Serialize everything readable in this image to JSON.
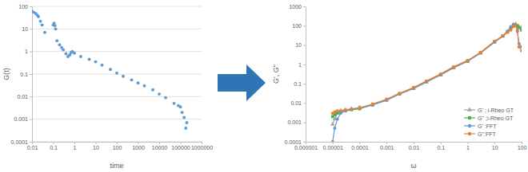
{
  "chart_data": [
    {
      "type": "scatter",
      "x_label": "time",
      "y_label": "G(t)",
      "log": true,
      "grid": true,
      "color": "#5b9bd5",
      "marker": "circle",
      "xlim": [
        0.01,
        1000000
      ],
      "ylim": [
        0.0001,
        100
      ],
      "xticks": [
        0.01,
        0.1,
        1,
        10,
        100,
        1000,
        10000,
        100000,
        1000000
      ],
      "yticks": [
        0.0001,
        0.001,
        0.01,
        0.1,
        1,
        10,
        100
      ],
      "x": [
        0.01,
        0.012,
        0.015,
        0.018,
        0.02,
        0.025,
        0.03,
        0.04,
        0.1,
        0.11,
        0.12,
        0.13,
        0.15,
        0.2,
        0.25,
        0.3,
        0.4,
        0.5,
        0.6,
        0.7,
        0.8,
        1,
        2,
        5,
        10,
        20,
        50,
        100,
        200,
        500,
        1000,
        2000,
        5000,
        10000,
        20000,
        50000,
        80000,
        100000,
        120000,
        150000,
        180000,
        200000
      ],
      "values": [
        60,
        55,
        48,
        40,
        35,
        22,
        15,
        7,
        15,
        18,
        14,
        10,
        3,
        2,
        1.5,
        1.2,
        0.8,
        0.6,
        0.7,
        0.9,
        1.0,
        0.85,
        0.6,
        0.45,
        0.35,
        0.25,
        0.16,
        0.11,
        0.08,
        0.055,
        0.04,
        0.03,
        0.02,
        0.013,
        0.009,
        0.005,
        0.004,
        0.0035,
        0.002,
        0.0012,
        0.0004,
        0.0007
      ]
    },
    {
      "type": "line",
      "x_label": "ω",
      "y_label": "G', G''",
      "log": true,
      "grid": false,
      "legend": "bottom-right",
      "xlim": [
        1e-06,
        100
      ],
      "ylim": [
        0.0001,
        1000
      ],
      "xticks": [
        1e-06,
        1e-05,
        0.0001,
        0.001,
        0.01,
        0.1,
        1,
        10,
        100
      ],
      "yticks": [
        0.0001,
        0.001,
        0.01,
        0.1,
        1,
        10,
        100,
        1000
      ],
      "x": [
        1e-05,
        1.2e-05,
        1.5e-05,
        2e-05,
        3e-05,
        5e-05,
        0.0001,
        0.0003,
        0.001,
        0.003,
        0.01,
        0.03,
        0.1,
        0.3,
        1,
        3,
        10,
        20,
        30,
        40,
        50,
        60,
        70,
        80,
        100
      ],
      "series": [
        {
          "name": "G' ; i-Rheo GT",
          "color": "#a5a5a5",
          "marker": "triangle",
          "line_style": "solid",
          "values": [
            0.0008,
            0.0015,
            0.003,
            0.004,
            0.0045,
            0.005,
            0.006,
            0.008,
            0.014,
            0.03,
            0.055,
            0.12,
            0.28,
            0.65,
            1.4,
            3.8,
            14,
            28,
            50,
            80,
            110,
            120,
            90,
            85,
            85
          ]
        },
        {
          "name": "G'' ;i-Rheo GT",
          "color": "#4caf50",
          "marker": "square",
          "line_style": "solid",
          "values": [
            0.002,
            0.0025,
            0.003,
            0.0035,
            0.004,
            0.0045,
            0.005,
            0.008,
            0.015,
            0.03,
            0.06,
            0.13,
            0.3,
            0.7,
            1.5,
            4,
            15,
            30,
            50,
            80,
            100,
            110,
            100,
            80,
            60
          ]
        },
        {
          "name": "G' :FFT",
          "color": "#5b9bd5",
          "marker": "circle",
          "line_style": "solid",
          "values": [
            0.0001,
            0.0005,
            0.0015,
            0.003,
            0.004,
            0.0048,
            0.0055,
            0.008,
            0.014,
            0.03,
            0.058,
            0.13,
            0.29,
            0.7,
            1.5,
            3.9,
            15,
            29,
            50,
            90,
            120,
            110,
            50,
            12,
            8
          ]
        },
        {
          "name": "G'':FFT",
          "color": "#ed7d31",
          "marker": "circle",
          "line_style": "solid",
          "values": [
            0.003,
            0.0035,
            0.004,
            0.004,
            0.0045,
            0.005,
            0.0055,
            0.009,
            0.016,
            0.032,
            0.065,
            0.14,
            0.32,
            0.75,
            1.6,
            4.2,
            16,
            30,
            45,
            60,
            90,
            120,
            60,
            8,
            5
          ]
        }
      ]
    }
  ]
}
